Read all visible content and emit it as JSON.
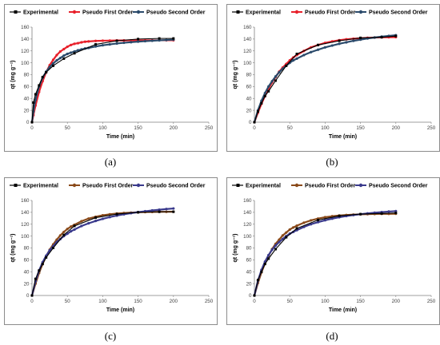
{
  "panels": [
    {
      "caption": "(a)",
      "chart_data": {
        "type": "line",
        "xlabel": "Time (min)",
        "ylabel": "qt (mg g⁻¹)",
        "xlim": [
          0,
          250
        ],
        "ylim": [
          0,
          160
        ],
        "xticks": [
          0,
          50,
          100,
          150,
          200,
          250
        ],
        "yticks": [
          0,
          20,
          40,
          60,
          80,
          100,
          120,
          140,
          160
        ],
        "grid": false,
        "legend_position": "top",
        "series": [
          {
            "name": "Experimental",
            "color": "#000000",
            "marker": "square",
            "x": [
              0,
              2,
              5,
              10,
              15,
              20,
              30,
              45,
              60,
              90,
              120,
              150,
              180,
              200
            ],
            "y": [
              0,
              33,
              47,
              62,
              76,
              84,
              95,
              107,
              116,
              131,
              137,
              140,
              141,
              141
            ]
          },
          {
            "name": "Pseudo First Order",
            "color": "#e8202a",
            "marker": "circle",
            "x": [
              0,
              2,
              5,
              10,
              15,
              20,
              25,
              30,
              35,
              40,
              45,
              50,
              55,
              60,
              65,
              70,
              75,
              80,
              90,
              100,
              110,
              120,
              130,
              140,
              150,
              160,
              170,
              180,
              190,
              200
            ],
            "y": [
              0,
              12,
              28,
              51,
              69,
              84,
              96,
              105,
              113,
              119,
              123,
              127,
              130,
              132,
              133,
              134.5,
              135.5,
              136,
              136.8,
              137.2,
              137.4,
              137.6,
              137.7,
              137.8,
              137.8,
              137.9,
              137.9,
              137.9,
              137.9,
              137.9
            ]
          },
          {
            "name": "Pseudo Second Order",
            "color": "#2a4a6b",
            "marker": "circle",
            "x": [
              0,
              2,
              5,
              10,
              15,
              20,
              25,
              30,
              35,
              40,
              45,
              50,
              55,
              60,
              65,
              70,
              75,
              80,
              90,
              100,
              110,
              120,
              130,
              140,
              150,
              160,
              170,
              180,
              190,
              200
            ],
            "y": [
              0,
              18,
              38,
              60,
              75,
              85,
              93,
              99,
              104,
              108,
              112,
              115,
              117,
              119,
              121,
              122.5,
              124,
              125,
              127.5,
              129.5,
              131,
              132.5,
              133.7,
              134.7,
              135.6,
              136.4,
              137.1,
              137.8,
              138.4,
              139
            ]
          }
        ]
      }
    },
    {
      "caption": "(b)",
      "chart_data": {
        "type": "line",
        "xlabel": "Time (min)",
        "ylabel": "qt (mg g⁻¹)",
        "xlim": [
          0,
          250
        ],
        "ylim": [
          0,
          160
        ],
        "xticks": [
          0,
          50,
          100,
          150,
          200,
          250
        ],
        "yticks": [
          0,
          20,
          40,
          60,
          80,
          100,
          120,
          140,
          160
        ],
        "grid": false,
        "legend_position": "top",
        "series": [
          {
            "name": "Experimental",
            "color": "#000000",
            "marker": "square",
            "x": [
              0,
              5,
              10,
              15,
              20,
              30,
              45,
              60,
              90,
              120,
              150,
              180,
              200
            ],
            "y": [
              0,
              18,
              32,
              44,
              52,
              70,
              95,
              115,
              130,
              137,
              142,
              143,
              145
            ]
          },
          {
            "name": "Pseudo First Order",
            "color": "#e8202a",
            "marker": "circle",
            "x": [
              0,
              5,
              10,
              15,
              20,
              25,
              30,
              35,
              40,
              45,
              50,
              55,
              60,
              70,
              80,
              90,
              100,
              110,
              120,
              130,
              140,
              150,
              160,
              170,
              180,
              190,
              200
            ],
            "y": [
              0,
              16,
              31,
              44,
              56,
              67,
              76,
              85,
              92,
              98,
              104,
              109,
              113,
              120,
              126,
              130,
              133.5,
              136,
              138,
              139.5,
              140.6,
              141.4,
              142,
              142.5,
              142.8,
              143,
              143.2
            ]
          },
          {
            "name": "Pseudo Second Order",
            "color": "#2a4a6b",
            "marker": "circle",
            "x": [
              0,
              5,
              10,
              15,
              20,
              25,
              30,
              35,
              40,
              45,
              50,
              55,
              60,
              70,
              80,
              90,
              100,
              110,
              120,
              130,
              140,
              150,
              160,
              170,
              180,
              190,
              200
            ],
            "y": [
              0,
              20,
              36,
              49,
              60,
              69,
              77,
              84,
              90,
              95,
              100,
              104,
              107,
              113,
              118,
              122,
              126,
              129,
              132,
              134.5,
              137,
              139,
              141,
              142.5,
              144,
              145.3,
              146.5
            ]
          }
        ]
      }
    },
    {
      "caption": "(c)",
      "chart_data": {
        "type": "line",
        "xlabel": "Time (min)",
        "ylabel": "qt (mg g⁻¹)",
        "xlim": [
          0,
          250
        ],
        "ylim": [
          0,
          160
        ],
        "xticks": [
          0,
          50,
          100,
          150,
          200,
          250
        ],
        "yticks": [
          0,
          20,
          40,
          60,
          80,
          100,
          120,
          140,
          160
        ],
        "grid": false,
        "legend_position": "top",
        "series": [
          {
            "name": "Experimental",
            "color": "#000000",
            "marker": "square",
            "x": [
              0,
              5,
              10,
              15,
              20,
              30,
              45,
              60,
              90,
              120,
              150,
              180,
              200
            ],
            "y": [
              0,
              28,
              42,
              53,
              64,
              80,
              102,
              117,
              131,
              137,
              140,
              141,
              141
            ]
          },
          {
            "name": "Pseudo First Order",
            "color": "#8a4a1a",
            "marker": "circle",
            "x": [
              0,
              5,
              10,
              15,
              20,
              25,
              30,
              35,
              40,
              45,
              50,
              55,
              60,
              70,
              80,
              90,
              100,
              110,
              120,
              130,
              140,
              150,
              160,
              170,
              180,
              190,
              200
            ],
            "y": [
              0,
              20,
              38,
              53,
              66,
              77,
              86,
              94,
              101,
              107,
              112,
              116,
              119,
              125,
              129.5,
              132.5,
              135,
              136.7,
              138,
              138.9,
              139.6,
              140,
              140.4,
              140.6,
              140.8,
              140.9,
              141
            ]
          },
          {
            "name": "Pseudo Second Order",
            "color": "#3a3a8c",
            "marker": "circle",
            "x": [
              0,
              5,
              10,
              15,
              20,
              25,
              30,
              35,
              40,
              45,
              50,
              55,
              60,
              70,
              80,
              90,
              100,
              110,
              120,
              130,
              140,
              150,
              160,
              170,
              180,
              190,
              200
            ],
            "y": [
              0,
              24,
              42,
              56,
              67,
              76,
              83,
              90,
              95,
              100,
              104,
              108,
              111,
              117,
              121.5,
              125.5,
              129,
              132,
              134.5,
              136.7,
              138.6,
              140.3,
              141.8,
              143.2,
              144.4,
              145.5,
              146.5
            ]
          }
        ]
      }
    },
    {
      "caption": "(d)",
      "chart_data": {
        "type": "line",
        "xlabel": "Time (min)",
        "ylabel": "qt (mg g⁻¹)",
        "xlim": [
          0,
          250
        ],
        "ylim": [
          0,
          160
        ],
        "xticks": [
          0,
          50,
          100,
          150,
          200,
          250
        ],
        "yticks": [
          0,
          20,
          40,
          60,
          80,
          100,
          120,
          140,
          160
        ],
        "grid": false,
        "legend_position": "top",
        "series": [
          {
            "name": "Experimental",
            "color": "#000000",
            "marker": "square",
            "x": [
              0,
              5,
              10,
              15,
              20,
              30,
              45,
              60,
              90,
              120,
              150,
              180,
              200
            ],
            "y": [
              0,
              26,
              40,
              53,
              62,
              78,
              98,
              113,
              127,
              134,
              137,
              138,
              139
            ]
          },
          {
            "name": "Pseudo First Order",
            "color": "#8a4a1a",
            "marker": "circle",
            "x": [
              0,
              5,
              10,
              15,
              20,
              25,
              30,
              35,
              40,
              45,
              50,
              55,
              60,
              70,
              80,
              90,
              100,
              110,
              120,
              130,
              140,
              150,
              160,
              170,
              180,
              190,
              200
            ],
            "y": [
              0,
              21,
              39,
              54,
              67,
              78,
              87,
              94,
              101,
              106,
              111,
              114.5,
              117.5,
              122.5,
              126.5,
              129.5,
              131.8,
              133.4,
              134.6,
              135.5,
              136.1,
              136.6,
              136.9,
              137.2,
              137.4,
              137.5,
              137.6
            ]
          },
          {
            "name": "Pseudo Second Order",
            "color": "#3a3a8c",
            "marker": "circle",
            "x": [
              0,
              5,
              10,
              15,
              20,
              25,
              30,
              35,
              40,
              45,
              50,
              55,
              60,
              70,
              80,
              90,
              100,
              110,
              120,
              130,
              140,
              150,
              160,
              170,
              180,
              190,
              200
            ],
            "y": [
              0,
              25,
              43,
              57,
              68,
              77,
              84,
              90,
              95,
              100,
              104,
              107,
              110,
              115.5,
              120,
              123.5,
              126.7,
              129.4,
              131.7,
              133.7,
              135.4,
              136.9,
              138.2,
              139.4,
              140.4,
              141.3,
              142.1
            ]
          }
        ]
      }
    }
  ]
}
